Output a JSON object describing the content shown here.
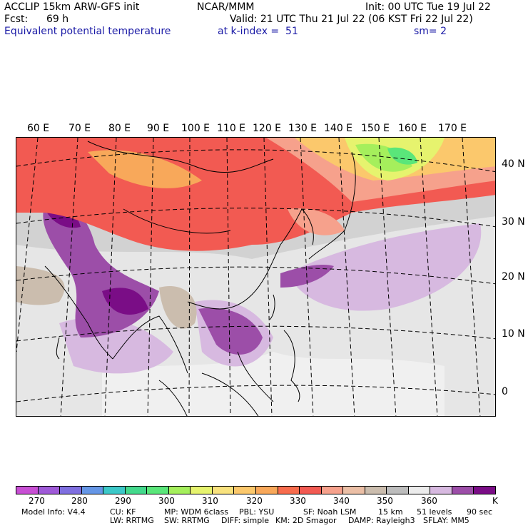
{
  "header": {
    "model": "ACCLIP 15km ARW-GFS init",
    "org": "NCAR/MMM",
    "init": "Init: 00 UTC Tue 19 Jul 22",
    "fcst_label": "Fcst:",
    "fcst_value": "69 h",
    "valid": "Valid: 21 UTC Thu 21 Jul 22 (06 KST Fri 22 Jul 22)",
    "field": "Equivalent potential temperature",
    "level": "at k-index =  51",
    "smoothing": "sm= 2"
  },
  "map": {
    "lon_labels": [
      "60 E",
      "70 E",
      "80 E",
      "90 E",
      "100 E",
      "110 E",
      "120 E",
      "130 E",
      "140 E",
      "150 E",
      "160 E",
      "170 E"
    ],
    "lat_labels": [
      "40 N",
      "30 N",
      "20 N",
      "10 N",
      "0"
    ]
  },
  "colorbar": {
    "colors": [
      "#c84fd4",
      "#9f5ad8",
      "#7f6fe0",
      "#6596e6",
      "#3cc8c8",
      "#43d98c",
      "#5ae67a",
      "#a5ef5c",
      "#e6f36e",
      "#f8e27e",
      "#fbc86c",
      "#f8a85a",
      "#f76c4d",
      "#f25a52",
      "#f6a18c",
      "#ebbfa6",
      "#cbbdae",
      "#bdbdbd",
      "#ececec",
      "#d7b9e0",
      "#9c4ea8",
      "#7a0d86"
    ],
    "tick_labels": [
      "270",
      "280",
      "290",
      "300",
      "310",
      "320",
      "330",
      "340",
      "350",
      "360"
    ],
    "units": "K"
  },
  "footer": {
    "line1": [
      "Model Info: V4.4",
      "CU: KF",
      "MP: WDM 6class",
      "PBL: YSU",
      "SF: Noah LSM",
      "15 km",
      "51 levels",
      "90 sec"
    ],
    "line2": [
      "LW: RRTMG",
      "SW: RRTMG",
      "DIFF: simple",
      "KM: 2D Smagor",
      "DAMP: Rayleigh3",
      "SFLAY: MM5"
    ]
  }
}
